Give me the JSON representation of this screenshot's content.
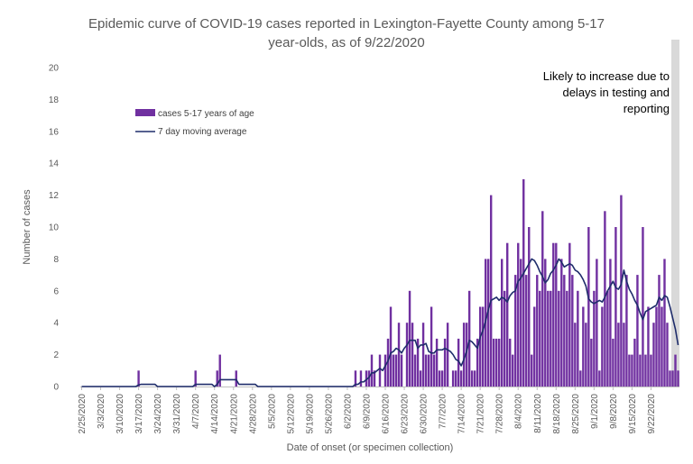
{
  "chart_data": {
    "type": "bar",
    "title_lines": [
      "Epidemic curve of COVID-19 cases reported in Lexington-Fayette County among 5-17",
      "year-olds, as of 9/22/2020"
    ],
    "xlabel": "Date of onset (or specimen collection)",
    "ylabel": "Number of cases",
    "ylim": [
      0,
      20
    ],
    "yticks": [
      0,
      2,
      4,
      6,
      8,
      10,
      12,
      14,
      16,
      18,
      20
    ],
    "x_start": "2/25/2020",
    "x_ticks": [
      "2/25/2020",
      "3/3/2020",
      "3/10/2020",
      "3/17/2020",
      "3/24/2020",
      "3/31/2020",
      "4/7/2020",
      "4/14/2020",
      "4/21/2020",
      "4/28/2020",
      "5/5/2020",
      "5/12/2020",
      "5/19/2020",
      "5/26/2020",
      "6/2/2020",
      "6/9/2020",
      "6/16/2020",
      "6/23/2020",
      "6/30/2020",
      "7/7/2020",
      "7/14/2020",
      "7/21/2020",
      "7/28/2020",
      "8/4/2020",
      "8/11/2020",
      "8/18/2020",
      "8/25/2020",
      "9/1/2020",
      "9/8/2020",
      "9/15/2020",
      "9/22/2020"
    ],
    "grid": false,
    "legend": "upper-left",
    "series": [
      {
        "name": "cases 5-17 years of age",
        "kind": "bar",
        "color": "#7030a0",
        "values": [
          0,
          0,
          0,
          0,
          0,
          0,
          0,
          0,
          0,
          0,
          0,
          0,
          0,
          0,
          0,
          0,
          0,
          0,
          0,
          0,
          0,
          1,
          0,
          0,
          0,
          0,
          0,
          0,
          0,
          0,
          0,
          0,
          0,
          0,
          0,
          0,
          0,
          0,
          0,
          0,
          0,
          0,
          1,
          0,
          0,
          0,
          0,
          0,
          0,
          0,
          1,
          2,
          0,
          0,
          0,
          0,
          0,
          1,
          0,
          0,
          0,
          0,
          0,
          0,
          0,
          0,
          0,
          0,
          0,
          0,
          0,
          0,
          0,
          0,
          0,
          0,
          0,
          0,
          0,
          0,
          0,
          0,
          0,
          0,
          0,
          0,
          0,
          0,
          0,
          0,
          0,
          0,
          0,
          0,
          0,
          0,
          0,
          0,
          0,
          0,
          0,
          1,
          0,
          1,
          0,
          1,
          1,
          2,
          1,
          0,
          2,
          0,
          2,
          3,
          5,
          2,
          2,
          4,
          2,
          0,
          4,
          6,
          4,
          2,
          3,
          1,
          4,
          2,
          2,
          5,
          2,
          3,
          1,
          1,
          3,
          4,
          0,
          1,
          1,
          3,
          1,
          4,
          4,
          6,
          1,
          1,
          3,
          5,
          5,
          8,
          8,
          12,
          3,
          3,
          3,
          8,
          6,
          9,
          3,
          2,
          7,
          9,
          8,
          13,
          7,
          10,
          2,
          5,
          7,
          6,
          11,
          8,
          6,
          6,
          9,
          9,
          6,
          8,
          7,
          6,
          9,
          7,
          4,
          6,
          1,
          5,
          4,
          10,
          3,
          6,
          8,
          1,
          5,
          11,
          6,
          8,
          3,
          10,
          4,
          12,
          4,
          7,
          2,
          2,
          3,
          7,
          2,
          10,
          2,
          5,
          2,
          4,
          5,
          7,
          5,
          8,
          4,
          1,
          1,
          2,
          1
        ]
      },
      {
        "name": "7 day moving average",
        "kind": "line",
        "color": "#1f2d6b",
        "values": [
          0,
          0,
          0,
          0,
          0,
          0,
          0,
          0,
          0,
          0,
          0,
          0,
          0,
          0,
          0,
          0,
          0,
          0,
          0,
          0,
          0,
          0.1,
          0.14,
          0.14,
          0.14,
          0.14,
          0.14,
          0.14,
          0,
          0,
          0,
          0,
          0,
          0,
          0,
          0,
          0,
          0,
          0,
          0,
          0,
          0,
          0.14,
          0.14,
          0.14,
          0.14,
          0.14,
          0.14,
          0.14,
          0,
          0.14,
          0.43,
          0.43,
          0.43,
          0.43,
          0.43,
          0.43,
          0.43,
          0.14,
          0.14,
          0.14,
          0.14,
          0.14,
          0.14,
          0.14,
          0,
          0,
          0,
          0,
          0,
          0,
          0,
          0,
          0,
          0,
          0,
          0,
          0,
          0,
          0,
          0,
          0,
          0,
          0,
          0,
          0,
          0,
          0,
          0,
          0,
          0,
          0,
          0,
          0,
          0,
          0,
          0,
          0,
          0,
          0,
          0,
          0.14,
          0.14,
          0.29,
          0.29,
          0.43,
          0.57,
          0.86,
          0.86,
          1,
          1.14,
          1,
          1.3,
          1.6,
          2.1,
          2.2,
          2.4,
          2.3,
          2.1,
          2.4,
          2.6,
          2.9,
          2.9,
          2.9,
          2.4,
          2.6,
          2.6,
          2.7,
          2.2,
          2.1,
          2.1,
          2.3,
          2.3,
          2.3,
          2.4,
          2.3,
          2.2,
          2.0,
          1.7,
          1.6,
          1.3,
          1.7,
          2.2,
          2.9,
          2.8,
          2.6,
          2.4,
          3.1,
          3.5,
          4.1,
          4.8,
          5.4,
          5.5,
          5.6,
          5.4,
          5.6,
          5.5,
          5.3,
          5.7,
          5.9,
          6.0,
          6.6,
          6.8,
          7.1,
          7.4,
          7.7,
          8.0,
          7.9,
          7.6,
          7.2,
          6.9,
          6.5,
          6.7,
          7.1,
          7.3,
          7.6,
          8.0,
          7.8,
          7.5,
          7.6,
          7.7,
          7.6,
          7.3,
          7.2,
          7.0,
          6.7,
          6.3,
          5.5,
          5.3,
          5.2,
          5.3,
          5.4,
          5.3,
          5.6,
          6.0,
          6.3,
          6.6,
          6.2,
          6.1,
          6.4,
          7.3,
          6.6,
          6.1,
          5.8,
          5.4,
          5.1,
          4.6,
          4.2,
          4.7,
          4.8,
          4.9,
          5.0,
          5.1,
          5.6,
          5.4,
          5.7,
          5.6,
          5.0,
          4.3,
          3.6,
          2.6
        ]
      }
    ],
    "annotation": {
      "lines": [
        "Likely to increase due to",
        "delays in testing and",
        "reporting"
      ],
      "shade_last_days": 3,
      "shade_color": "#d9d9d9"
    }
  }
}
